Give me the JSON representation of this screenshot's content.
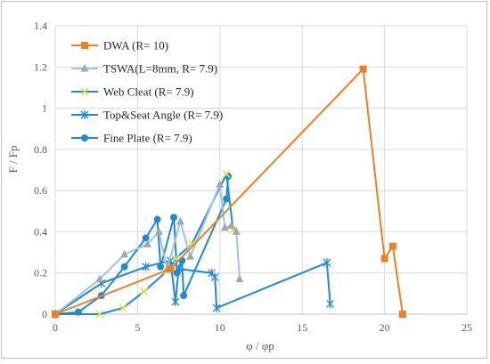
{
  "chart_data": {
    "type": "line",
    "title": "",
    "xlabel": "φ / φp",
    "ylabel": "F / Fp",
    "xlim": [
      0,
      25
    ],
    "ylim": [
      0,
      1.4
    ],
    "xticks": [
      0,
      5,
      10,
      15,
      20,
      25
    ],
    "yticks": [
      0,
      0.2,
      0.4,
      0.6,
      0.8,
      1,
      1.2,
      1.4
    ],
    "xtick_labels": [
      "0",
      "5",
      "10",
      "15",
      "20",
      "25"
    ],
    "ytick_labels": [
      "0",
      "0.2",
      "0.4",
      "0.6",
      "0.8",
      "1",
      "1.2",
      "1.4"
    ],
    "grid": "vertical and horizontal major gridlines",
    "legend_position": "top-left",
    "series": [
      {
        "name": "DWA (R= 10)",
        "color": "#f07f24",
        "marker": "square",
        "points": [
          [
            0,
            0
          ],
          [
            7.0,
            0.22
          ],
          [
            18.7,
            1.19
          ],
          [
            20.0,
            0.27
          ],
          [
            20.5,
            0.33
          ],
          [
            21.1,
            0.0
          ]
        ]
      },
      {
        "name": "TSWA(L=8mm, R= 7.9)",
        "color": "#9dc3e6",
        "marker_color": "#a6a6a6",
        "marker": "triangle",
        "points": [
          [
            0,
            0
          ],
          [
            2.7,
            0.17
          ],
          [
            4.2,
            0.29
          ],
          [
            5.6,
            0.34
          ],
          [
            6.3,
            0.4
          ],
          [
            6.8,
            0.22
          ],
          [
            7.6,
            0.45
          ],
          [
            8.2,
            0.28
          ],
          [
            10.0,
            0.63
          ],
          [
            10.3,
            0.42
          ],
          [
            10.7,
            0.43
          ],
          [
            11.0,
            0.4
          ],
          [
            11.2,
            0.17
          ]
        ]
      },
      {
        "name": "Web Cleat (R= 7.9)",
        "color": "#1f8ad0",
        "marker_color": "#e5e53b",
        "marker": "x",
        "points": [
          [
            0,
            0
          ],
          [
            2.7,
            0.0
          ],
          [
            4.1,
            0.03
          ],
          [
            5.4,
            0.11
          ],
          [
            6.8,
            0.21
          ],
          [
            7.3,
            0.27
          ],
          [
            8.3,
            0.34
          ],
          [
            10.4,
            0.68
          ],
          [
            10.8,
            0.41
          ]
        ]
      },
      {
        "name": "Top&Seat Angle (R= 7.9)",
        "color": "#1f8ad0",
        "marker": "star",
        "points": [
          [
            0,
            0
          ],
          [
            2.8,
            0.15
          ],
          [
            5.5,
            0.23
          ],
          [
            7.0,
            0.26
          ],
          [
            7.3,
            0.06
          ],
          [
            7.5,
            0.22
          ],
          [
            9.5,
            0.2
          ],
          [
            9.7,
            0.18
          ],
          [
            9.8,
            0.03
          ],
          [
            16.5,
            0.25
          ],
          [
            16.7,
            0.05
          ]
        ]
      },
      {
        "name": "Fine Plate (R= 7.9)",
        "color": "#1f8ad0",
        "marker": "circle",
        "points": [
          [
            0,
            0
          ],
          [
            1.4,
            0.01
          ],
          [
            2.8,
            0.09
          ],
          [
            4.2,
            0.23
          ],
          [
            5.5,
            0.37
          ],
          [
            6.2,
            0.46
          ],
          [
            6.4,
            0.23
          ],
          [
            7.2,
            0.47
          ],
          [
            7.4,
            0.2
          ],
          [
            7.7,
            0.26
          ],
          [
            7.8,
            0.09
          ],
          [
            10.4,
            0.56
          ],
          [
            10.5,
            0.67
          ]
        ]
      }
    ]
  }
}
